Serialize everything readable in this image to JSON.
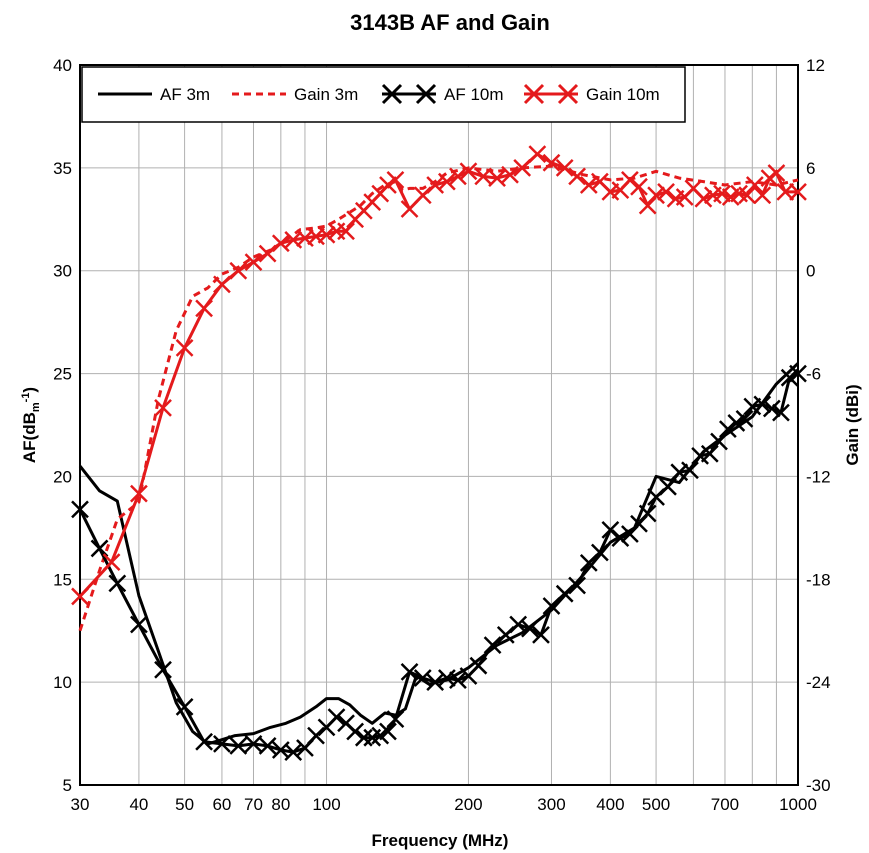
{
  "chart_data": {
    "type": "line",
    "title": "3143B AF and Gain",
    "xlabel": "Frequency (MHz)",
    "ylabel_left": "AF(dBm-1)",
    "ylabel_left_main": "AF(dB",
    "ylabel_left_sub": "m",
    "ylabel_left_sup": "-1",
    "ylabel_left_close": ")",
    "ylabel_right": "Gain (dBi)",
    "x_scale": "log",
    "xlim": [
      30,
      1000
    ],
    "ylim_left": [
      5,
      40
    ],
    "ylim_right": [
      -30,
      12
    ],
    "grid": true,
    "legend_position": "top-left",
    "x_ticks": [
      30,
      40,
      50,
      60,
      70,
      80,
      100,
      200,
      300,
      400,
      500,
      700,
      1000
    ],
    "x_tick_labels": [
      "30",
      "40",
      "50",
      "60",
      "70",
      "80",
      "100",
      "200",
      "300",
      "400",
      "500",
      "700",
      "1000"
    ],
    "y_left_ticks": [
      5,
      10,
      15,
      20,
      25,
      30,
      35,
      40
    ],
    "y_left_tick_labels": [
      "5",
      "10",
      "15",
      "20",
      "25",
      "30",
      "35",
      "40"
    ],
    "y_right_ticks": [
      -30,
      -24,
      -18,
      -12,
      -6,
      0,
      6,
      12
    ],
    "y_right_tick_labels": [
      "-30",
      "-24",
      "-18",
      "-12",
      "-6",
      "0",
      "6",
      "12"
    ],
    "series": [
      {
        "name": "AF 3m",
        "axis": "left",
        "color": "#000000",
        "style": "solid",
        "marker": "none",
        "x": [
          30,
          33,
          36,
          40,
          44,
          48,
          52,
          56,
          60,
          64,
          70,
          76,
          82,
          88,
          95,
          100,
          106,
          112,
          118,
          125,
          133,
          140,
          147,
          155,
          165,
          180,
          200,
          230,
          260,
          300,
          350,
          400,
          450,
          500,
          560,
          630,
          700,
          800,
          900,
          1000
        ],
        "y": [
          20.5,
          19.3,
          18.8,
          14.2,
          11.5,
          9.0,
          7.6,
          7.0,
          7.2,
          7.4,
          7.5,
          7.8,
          8.0,
          8.3,
          8.8,
          9.2,
          9.2,
          8.9,
          8.4,
          8.0,
          8.5,
          8.4,
          8.7,
          10.3,
          9.9,
          10.1,
          10.7,
          11.8,
          12.4,
          13.5,
          15.2,
          16.8,
          17.5,
          20.0,
          19.7,
          21.2,
          22.0,
          22.9,
          24.5,
          25.5
        ]
      },
      {
        "name": "Gain 3m",
        "axis": "right",
        "color": "#e41a1c",
        "style": "dashed",
        "marker": "none",
        "x": [
          30,
          33,
          36,
          40,
          44,
          48,
          52,
          56,
          60,
          65,
          70,
          76,
          82,
          88,
          95,
          100,
          106,
          112,
          118,
          125,
          133,
          140,
          145,
          150,
          160,
          170,
          180,
          200,
          230,
          260,
          300,
          350,
          400,
          450,
          500,
          560,
          630,
          700,
          800,
          900,
          1000
        ],
        "y": [
          -21.0,
          -17.5,
          -14.5,
          -13.5,
          -7.5,
          -3.5,
          -1.5,
          -1.0,
          -0.2,
          0.2,
          0.8,
          1.2,
          1.8,
          2.4,
          2.5,
          2.6,
          3.0,
          3.4,
          3.8,
          4.5,
          5.0,
          5.2,
          4.7,
          4.8,
          4.8,
          5.2,
          5.7,
          6.0,
          5.8,
          6.0,
          6.1,
          5.6,
          5.3,
          5.4,
          5.8,
          5.4,
          5.2,
          5.0,
          5.2,
          5.0,
          5.3
        ]
      },
      {
        "name": "AF 10m",
        "axis": "left",
        "color": "#000000",
        "style": "solid",
        "marker": "x",
        "x": [
          30,
          33,
          36,
          40,
          45,
          50,
          55,
          60,
          65,
          70,
          75,
          80,
          85,
          90,
          95,
          100,
          105,
          110,
          115,
          120,
          125,
          130,
          135,
          140,
          150,
          160,
          170,
          180,
          190,
          200,
          210,
          225,
          240,
          255,
          270,
          285,
          300,
          320,
          340,
          360,
          380,
          400,
          420,
          440,
          460,
          480,
          500,
          530,
          560,
          590,
          620,
          650,
          680,
          710,
          740,
          770,
          800,
          840,
          880,
          920,
          960,
          1000
        ],
        "y": [
          18.4,
          16.5,
          14.8,
          12.8,
          10.6,
          8.8,
          7.1,
          7.0,
          6.9,
          7.0,
          6.9,
          6.7,
          6.6,
          6.8,
          7.4,
          7.8,
          8.3,
          8.0,
          7.6,
          7.3,
          7.3,
          7.4,
          7.6,
          8.2,
          10.5,
          10.2,
          10.0,
          10.2,
          10.1,
          10.3,
          10.8,
          11.8,
          12.3,
          12.8,
          12.6,
          12.3,
          13.7,
          14.3,
          14.7,
          15.8,
          16.3,
          17.4,
          17.0,
          17.2,
          17.7,
          18.2,
          19.0,
          19.5,
          20.2,
          20.3,
          21.0,
          21.1,
          21.7,
          22.3,
          22.6,
          22.8,
          23.4,
          23.5,
          23.3,
          23.1,
          24.8,
          25.0
        ]
      },
      {
        "name": "Gain 10m",
        "axis": "right",
        "color": "#e41a1c",
        "style": "solid",
        "marker": "x",
        "x": [
          30,
          35,
          40,
          45,
          50,
          55,
          60,
          65,
          70,
          75,
          80,
          85,
          90,
          95,
          100,
          105,
          110,
          115,
          120,
          125,
          130,
          135,
          140,
          150,
          160,
          170,
          180,
          190,
          200,
          215,
          230,
          245,
          260,
          280,
          300,
          320,
          340,
          360,
          380,
          400,
          420,
          440,
          460,
          480,
          500,
          525,
          550,
          575,
          600,
          630,
          660,
          690,
          720,
          750,
          780,
          810,
          840,
          870,
          900,
          940,
          1000
        ],
        "y": [
          -19.0,
          -17.0,
          -13.0,
          -8.0,
          -4.5,
          -2.2,
          -0.8,
          0.0,
          0.5,
          1.0,
          1.6,
          1.8,
          1.9,
          2.0,
          2.1,
          2.3,
          2.3,
          3.0,
          3.5,
          4.0,
          4.5,
          5.0,
          5.3,
          3.6,
          4.4,
          5.0,
          5.2,
          5.5,
          5.8,
          5.5,
          5.4,
          5.6,
          6.0,
          6.8,
          6.3,
          6.0,
          5.5,
          5.0,
          5.2,
          4.6,
          4.7,
          5.3,
          4.9,
          3.8,
          4.4,
          4.6,
          4.2,
          4.3,
          4.8,
          4.2,
          4.4,
          4.5,
          4.3,
          4.5,
          4.4,
          5.0,
          4.4,
          5.4,
          5.7,
          4.6,
          4.6
        ]
      }
    ]
  }
}
